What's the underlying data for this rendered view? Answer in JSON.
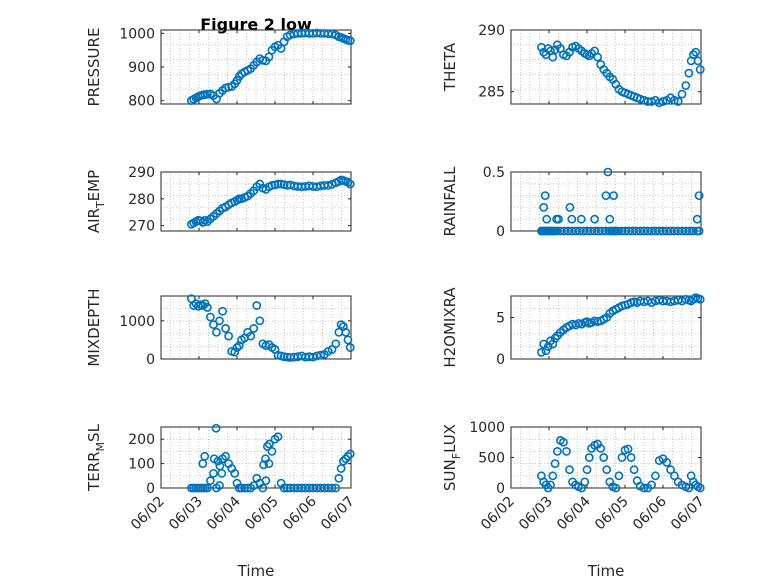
{
  "figure_title": "Figure 2 low",
  "colors": {
    "series": "#0072BD",
    "axis": "#262626",
    "grid": "#bdbdbd"
  },
  "x_ticks": [
    "06/02",
    "06/03",
    "06/04",
    "06/05",
    "06/06",
    "06/07"
  ],
  "x_label": "Time",
  "chart_data": [
    {
      "type": "scatter",
      "title": "Figure 2 low",
      "ylabel": "PRESSURE",
      "xlabel": "",
      "xlim": [
        0,
        5
      ],
      "ylim": [
        790,
        1010
      ],
      "yticks": [
        800,
        900,
        1000
      ],
      "ytick_labels": [
        "800",
        "900",
        "1000"
      ],
      "grid": true,
      "x": [
        0.8,
        0.86,
        0.92,
        0.98,
        1.04,
        1.1,
        1.16,
        1.22,
        1.3,
        1.38,
        1.46,
        1.54,
        1.62,
        1.7,
        1.78,
        1.86,
        1.94,
        2.0,
        2.06,
        2.12,
        2.2,
        2.28,
        2.36,
        2.44,
        2.52,
        2.6,
        2.68,
        2.76,
        2.84,
        2.92,
        3.0,
        3.08,
        3.16,
        3.24,
        3.32,
        3.4,
        3.5,
        3.6,
        3.7,
        3.8,
        3.9,
        4.0,
        4.1,
        4.2,
        4.3,
        4.4,
        4.5,
        4.6,
        4.68,
        4.74,
        4.8,
        4.86,
        4.92,
        4.98
      ],
      "y": [
        800,
        804,
        808,
        812,
        815,
        817,
        818,
        819,
        820,
        815,
        805,
        822,
        830,
        838,
        840,
        842,
        850,
        860,
        872,
        880,
        885,
        890,
        895,
        905,
        915,
        925,
        920,
        918,
        930,
        950,
        960,
        965,
        955,
        975,
        990,
        995,
        998,
        1000,
        1000,
        1001,
        1000,
        1000,
        1001,
        1000,
        1000,
        999,
        998,
        995,
        990,
        988,
        985,
        982,
        980,
        978
      ]
    },
    {
      "type": "scatter",
      "title": "",
      "ylabel": "THETA",
      "xlabel": "",
      "xlim": [
        0,
        5
      ],
      "ylim": [
        284,
        290
      ],
      "yticks": [
        285,
        290
      ],
      "ytick_labels": [
        "285",
        "290"
      ],
      "grid": true,
      "x": [
        0.8,
        0.86,
        0.92,
        0.98,
        1.04,
        1.1,
        1.16,
        1.22,
        1.3,
        1.38,
        1.46,
        1.54,
        1.62,
        1.7,
        1.78,
        1.86,
        1.94,
        2.0,
        2.06,
        2.12,
        2.2,
        2.28,
        2.36,
        2.44,
        2.52,
        2.6,
        2.68,
        2.76,
        2.84,
        2.92,
        3.0,
        3.08,
        3.16,
        3.24,
        3.32,
        3.4,
        3.5,
        3.6,
        3.7,
        3.8,
        3.9,
        4.0,
        4.1,
        4.2,
        4.3,
        4.4,
        4.5,
        4.6,
        4.68,
        4.74,
        4.8,
        4.86,
        4.92,
        4.98
      ],
      "y": [
        288.6,
        288.2,
        288.0,
        288.5,
        288.3,
        287.8,
        288.4,
        288.8,
        288.5,
        288.0,
        287.9,
        288.2,
        288.6,
        288.7,
        288.5,
        288.3,
        288.1,
        288.0,
        287.9,
        288.1,
        288.3,
        287.8,
        287.2,
        286.8,
        286.5,
        286.2,
        286.0,
        285.6,
        285.2,
        285.0,
        284.9,
        284.8,
        284.7,
        284.6,
        284.5,
        284.4,
        284.3,
        284.2,
        284.2,
        284.3,
        284.1,
        284.2,
        284.3,
        284.5,
        284.3,
        284.2,
        284.8,
        285.5,
        286.5,
        287.5,
        288.0,
        288.2,
        287.5,
        286.8
      ]
    },
    {
      "type": "scatter",
      "title": "",
      "ylabel": "AIR_TEMP",
      "xlabel": "",
      "xlim": [
        0,
        5
      ],
      "ylim": [
        268,
        290
      ],
      "yticks": [
        270,
        280,
        290
      ],
      "ytick_labels": [
        "270",
        "280",
        "290"
      ],
      "grid": true,
      "x": [
        0.8,
        0.86,
        0.92,
        0.98,
        1.04,
        1.1,
        1.16,
        1.22,
        1.3,
        1.38,
        1.46,
        1.54,
        1.62,
        1.7,
        1.78,
        1.86,
        1.94,
        2.0,
        2.06,
        2.12,
        2.2,
        2.28,
        2.36,
        2.44,
        2.52,
        2.6,
        2.68,
        2.76,
        2.84,
        2.92,
        3.0,
        3.08,
        3.16,
        3.24,
        3.32,
        3.4,
        3.5,
        3.6,
        3.7,
        3.8,
        3.9,
        4.0,
        4.1,
        4.2,
        4.3,
        4.4,
        4.5,
        4.6,
        4.68,
        4.74,
        4.8,
        4.86,
        4.92,
        4.98
      ],
      "y": [
        270.5,
        271.0,
        271.5,
        272.0,
        271.8,
        271.2,
        272.0,
        271.5,
        272.5,
        273.5,
        274.5,
        275.5,
        276.5,
        277.0,
        277.8,
        278.5,
        279.0,
        279.5,
        280.0,
        280.0,
        280.5,
        281.0,
        282.0,
        283.0,
        284.5,
        285.5,
        284.0,
        283.5,
        284.5,
        285.0,
        285.2,
        285.5,
        285.5,
        285.3,
        285.0,
        285.2,
        284.8,
        284.6,
        284.5,
        284.6,
        284.8,
        284.6,
        284.5,
        284.8,
        285.0,
        285.0,
        285.4,
        286.0,
        286.5,
        287.0,
        286.8,
        286.5,
        286.2,
        285.5
      ]
    },
    {
      "type": "scatter",
      "title": "",
      "ylabel": "RAINFALL",
      "xlabel": "",
      "xlim": [
        0,
        5
      ],
      "ylim": [
        0,
        0.5
      ],
      "yticks": [
        0,
        0.5
      ],
      "ytick_labels": [
        "0",
        "0.5"
      ],
      "grid": true,
      "x": [
        0.8,
        0.84,
        0.88,
        0.92,
        0.96,
        1.0,
        1.05,
        1.1,
        1.15,
        1.2,
        1.3,
        1.4,
        1.5,
        1.6,
        1.7,
        1.8,
        1.9,
        2.0,
        2.1,
        2.2,
        2.3,
        2.4,
        2.5,
        2.6,
        2.65,
        2.7,
        2.75,
        2.8,
        2.9,
        3.0,
        3.1,
        3.2,
        3.3,
        3.4,
        3.5,
        3.6,
        3.7,
        3.8,
        3.9,
        4.0,
        4.1,
        4.2,
        4.3,
        4.4,
        4.5,
        4.6,
        4.7,
        4.8,
        4.9,
        4.95,
        0.86,
        0.9,
        0.94,
        1.2,
        1.25,
        1.55,
        1.6,
        1.85,
        2.2,
        2.5,
        2.55,
        2.6,
        2.7,
        4.9,
        4.95
      ],
      "y": [
        0,
        0,
        0,
        0,
        0,
        0,
        0,
        0,
        0,
        0,
        0,
        0,
        0,
        0,
        0,
        0,
        0,
        0,
        0,
        0,
        0,
        0,
        0,
        0,
        0,
        0,
        0,
        0,
        0,
        0,
        0,
        0,
        0,
        0,
        0,
        0,
        0,
        0,
        0,
        0,
        0,
        0,
        0,
        0,
        0,
        0,
        0,
        0,
        0,
        0,
        0.2,
        0.3,
        0.1,
        0.1,
        0.1,
        0.2,
        0.1,
        0.1,
        0.1,
        0.3,
        0.5,
        0.1,
        0.3,
        0.1,
        0.3
      ]
    },
    {
      "type": "scatter",
      "title": "",
      "ylabel": "MIXDEPTH",
      "xlabel": "",
      "xlim": [
        0,
        5
      ],
      "ylim": [
        0,
        1650
      ],
      "yticks": [
        0,
        1000
      ],
      "ytick_labels": [
        "0",
        "1000"
      ],
      "grid": true,
      "x": [
        0.8,
        0.86,
        0.92,
        0.98,
        1.04,
        1.1,
        1.16,
        1.22,
        1.3,
        1.38,
        1.46,
        1.54,
        1.62,
        1.7,
        1.78,
        1.86,
        1.94,
        2.0,
        2.06,
        2.12,
        2.2,
        2.28,
        2.36,
        2.44,
        2.52,
        2.6,
        2.68,
        2.76,
        2.84,
        2.92,
        3.0,
        3.08,
        3.16,
        3.24,
        3.32,
        3.4,
        3.5,
        3.6,
        3.7,
        3.8,
        3.9,
        4.0,
        4.1,
        4.2,
        4.3,
        4.4,
        4.5,
        4.6,
        4.68,
        4.74,
        4.8,
        4.86,
        4.92,
        4.98
      ],
      "y": [
        1580,
        1400,
        1450,
        1380,
        1420,
        1400,
        1450,
        1350,
        1100,
        900,
        700,
        1000,
        1250,
        800,
        600,
        200,
        180,
        300,
        350,
        500,
        550,
        700,
        600,
        800,
        1400,
        1000,
        400,
        350,
        380,
        300,
        250,
        100,
        80,
        60,
        50,
        40,
        50,
        60,
        80,
        50,
        60,
        50,
        80,
        100,
        120,
        200,
        250,
        400,
        700,
        900,
        850,
        700,
        500,
        300
      ]
    },
    {
      "type": "scatter",
      "title": "",
      "ylabel": "H2OMIXRA",
      "xlabel": "",
      "xlim": [
        0,
        5
      ],
      "ylim": [
        0,
        7.6
      ],
      "yticks": [
        0,
        5
      ],
      "ytick_labels": [
        "0",
        "5"
      ],
      "grid": true,
      "x": [
        0.8,
        0.86,
        0.92,
        0.98,
        1.04,
        1.1,
        1.16,
        1.22,
        1.3,
        1.38,
        1.46,
        1.54,
        1.62,
        1.7,
        1.78,
        1.86,
        1.94,
        2.0,
        2.06,
        2.12,
        2.2,
        2.28,
        2.36,
        2.44,
        2.52,
        2.6,
        2.68,
        2.76,
        2.84,
        2.92,
        3.0,
        3.08,
        3.16,
        3.24,
        3.32,
        3.4,
        3.5,
        3.6,
        3.7,
        3.8,
        3.9,
        4.0,
        4.1,
        4.2,
        4.3,
        4.4,
        4.5,
        4.6,
        4.68,
        4.74,
        4.8,
        4.86,
        4.92,
        4.98
      ],
      "y": [
        0.8,
        1.8,
        1.0,
        1.5,
        2.2,
        1.8,
        2.5,
        2.8,
        3.2,
        3.5,
        3.8,
        4.0,
        4.2,
        4.1,
        4.3,
        4.2,
        4.4,
        4.5,
        4.3,
        4.4,
        4.6,
        4.5,
        4.6,
        4.8,
        5.0,
        5.5,
        5.8,
        6.0,
        6.2,
        6.4,
        6.5,
        6.6,
        6.8,
        6.9,
        6.8,
        7.0,
        6.9,
        7.0,
        6.8,
        7.0,
        7.1,
        7.0,
        7.0,
        6.9,
        7.0,
        7.1,
        7.0,
        7.2,
        7.1,
        7.0,
        7.2,
        7.4,
        7.3,
        7.2
      ]
    },
    {
      "type": "scatter",
      "title": "",
      "ylabel": "TERR_MSL",
      "xlabel": "",
      "xlim": [
        0,
        5
      ],
      "ylim": [
        0,
        250
      ],
      "yticks": [
        0,
        100,
        200
      ],
      "ytick_labels": [
        "0",
        "100",
        "200"
      ],
      "grid": true,
      "x": [
        0.8,
        0.86,
        0.92,
        0.98,
        1.04,
        1.1,
        1.16,
        1.22,
        1.3,
        1.38,
        1.46,
        1.54,
        1.62,
        1.7,
        1.78,
        1.86,
        1.94,
        2.0,
        2.06,
        2.12,
        2.2,
        2.28,
        2.36,
        2.44,
        2.52,
        2.6,
        2.68,
        2.76,
        2.84,
        2.92,
        3.0,
        3.08,
        3.16,
        3.24,
        3.32,
        3.4,
        3.5,
        3.6,
        3.7,
        3.8,
        3.9,
        4.0,
        4.1,
        4.2,
        4.3,
        4.4,
        4.5,
        4.6,
        4.68,
        4.74,
        4.8,
        4.86,
        4.92,
        4.98,
        1.1,
        1.15,
        1.4,
        1.45,
        1.5,
        1.55,
        1.6,
        2.7,
        2.75,
        2.8,
        2.85
      ],
      "y": [
        0,
        0,
        0,
        0,
        0,
        0,
        0,
        0,
        30,
        60,
        0,
        10,
        120,
        130,
        100,
        80,
        60,
        20,
        0,
        0,
        0,
        0,
        0,
        10,
        40,
        20,
        0,
        30,
        100,
        150,
        200,
        210,
        20,
        0,
        0,
        0,
        0,
        0,
        0,
        0,
        0,
        0,
        0,
        0,
        0,
        0,
        0,
        0,
        40,
        80,
        110,
        120,
        130,
        140,
        100,
        130,
        120,
        245,
        110,
        90,
        60,
        95,
        120,
        170,
        180
      ]
    },
    {
      "type": "scatter",
      "title": "",
      "ylabel": "SUN_FLUX",
      "xlabel": "",
      "xlim": [
        0,
        5
      ],
      "ylim": [
        0,
        1000
      ],
      "yticks": [
        0,
        500,
        1000
      ],
      "ytick_labels": [
        "0",
        "500",
        "1000"
      ],
      "grid": true,
      "x": [
        0.8,
        0.86,
        0.92,
        0.98,
        1.04,
        1.1,
        1.16,
        1.22,
        1.3,
        1.38,
        1.46,
        1.54,
        1.62,
        1.7,
        1.78,
        1.86,
        1.94,
        2.0,
        2.06,
        2.12,
        2.2,
        2.28,
        2.36,
        2.44,
        2.52,
        2.6,
        2.68,
        2.76,
        2.84,
        2.92,
        3.0,
        3.08,
        3.16,
        3.24,
        3.32,
        3.4,
        3.5,
        3.6,
        3.7,
        3.8,
        3.9,
        4.0,
        4.1,
        4.2,
        4.3,
        4.4,
        4.5,
        4.6,
        4.68,
        4.74,
        4.8,
        4.86,
        4.92,
        4.98
      ],
      "y": [
        200,
        100,
        50,
        0,
        50,
        200,
        400,
        600,
        780,
        750,
        600,
        300,
        100,
        50,
        20,
        0,
        100,
        300,
        500,
        650,
        700,
        720,
        650,
        500,
        300,
        100,
        20,
        0,
        200,
        500,
        620,
        640,
        500,
        300,
        120,
        30,
        0,
        0,
        50,
        200,
        450,
        480,
        420,
        300,
        200,
        100,
        50,
        20,
        0,
        200,
        100,
        50,
        20,
        0
      ]
    }
  ]
}
